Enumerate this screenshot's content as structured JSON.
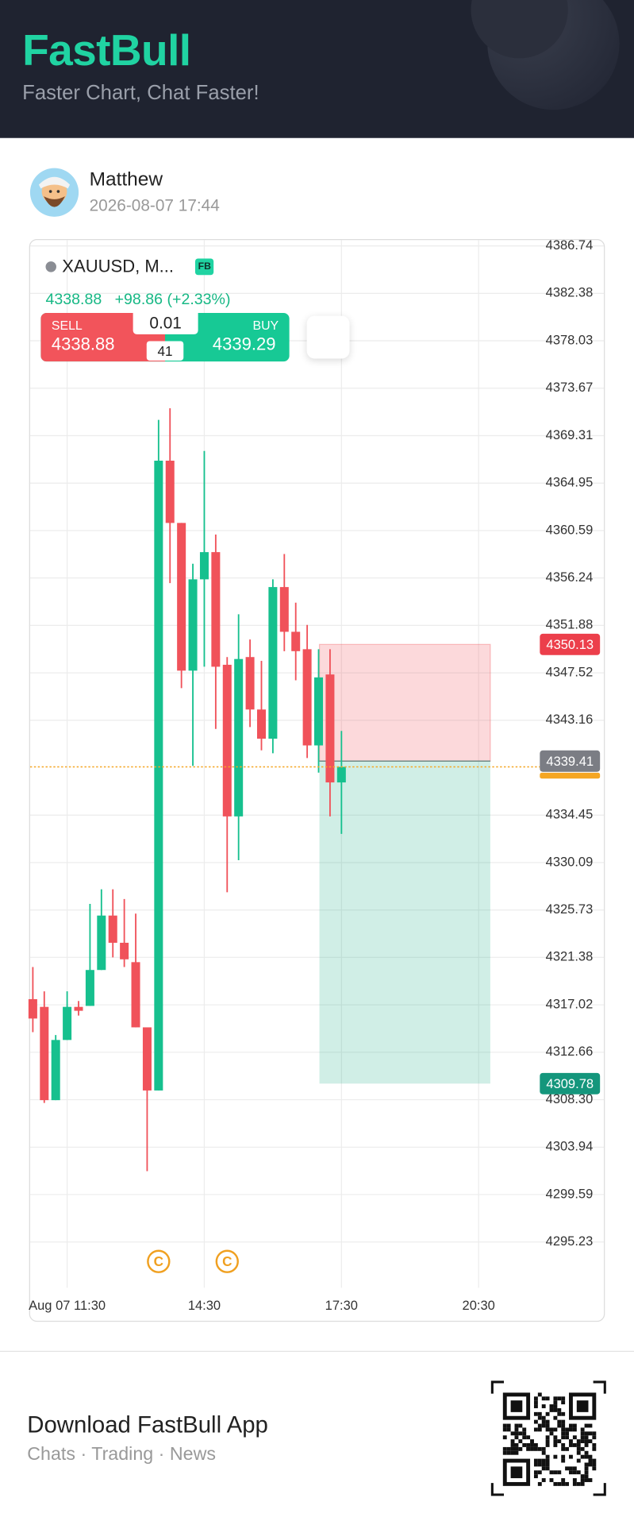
{
  "header": {
    "title": "FastBull",
    "subtitle": "Faster Chart, Chat Faster!"
  },
  "post": {
    "author": "Matthew",
    "timestamp": "2026-08-07 17:44"
  },
  "chart_data": {
    "type": "candlestick",
    "symbol": "XAUUSD, M...",
    "badge": "FB",
    "quote": {
      "last": 4338.88,
      "change": "+98.86",
      "change_pct": "(+2.33%)",
      "sell_label": "SELL",
      "sell": 4338.88,
      "lot": 0.01,
      "spread": 41,
      "buy_label": "BUY",
      "buy": 4339.29
    },
    "x": [
      10.75,
      11,
      11.25,
      11.5,
      11.75,
      12,
      12.25,
      12.5,
      12.75,
      13,
      13.25,
      13.5,
      13.75,
      14,
      14.25,
      14.5,
      14.75,
      15,
      15.25,
      15.5,
      15.75,
      16,
      16.25,
      16.5,
      16.75,
      17,
      17.25,
      17.5
    ],
    "open": [
      4317.54,
      4316.83,
      4308.26,
      4313.79,
      4316.83,
      4316.92,
      4320.22,
      4325.22,
      4322.72,
      4320.94,
      4314.95,
      4309.15,
      4367.01,
      4361.29,
      4347.72,
      4356.11,
      4358.61,
      4348.26,
      4334.33,
      4348.97,
      4344.15,
      4341.47,
      4355.4,
      4351.29,
      4349.69,
      4340.85,
      4347.37,
      4337.45
    ],
    "high": [
      4320.49,
      4318.26,
      4314.24,
      4318.26,
      4317.37,
      4326.29,
      4327.63,
      4327.63,
      4326.74,
      4325.4,
      4314.95,
      4370.76,
      4371.83,
      4361.29,
      4357.54,
      4367.9,
      4360.22,
      4348.97,
      4352.9,
      4350.58,
      4348.62,
      4356.11,
      4358.44,
      4353.97,
      4351.92,
      4349.69,
      4349.69,
      4342.18
    ],
    "low": [
      4314.51,
      4308.0,
      4308.26,
      4313.79,
      4316.03,
      4316.92,
      4320.22,
      4321.38,
      4320.49,
      4314.95,
      4301.74,
      4309.15,
      4355.76,
      4346.11,
      4338.97,
      4348.08,
      4342.36,
      4327.36,
      4330.31,
      4342.54,
      4340.4,
      4340.13,
      4349.51,
      4346.83,
      4339.69,
      4338.35,
      4334.33,
      4332.72
    ],
    "close": [
      4315.76,
      4308.26,
      4313.79,
      4316.83,
      4316.47,
      4320.22,
      4325.22,
      4322.72,
      4321.2,
      4314.95,
      4309.15,
      4367.01,
      4361.29,
      4347.72,
      4356.11,
      4358.61,
      4348.08,
      4334.33,
      4348.79,
      4344.15,
      4341.47,
      4355.4,
      4351.29,
      4349.51,
      4340.85,
      4347.1,
      4337.45,
      4338.88
    ],
    "up_color": "#16c08e",
    "down_color": "#f0525a",
    "last_price": 4338.88,
    "last_price_color": "#f5a623",
    "price_lines": [
      {
        "value": 4350.13,
        "color": "#ec3f4b"
      },
      {
        "value": 4339.41,
        "color": "#7b7d84"
      },
      {
        "value": 4309.78,
        "color": "#14967c"
      }
    ],
    "position": {
      "stop": 4350.13,
      "entry": 4339.41,
      "target": 4309.78
    },
    "markers": [
      {
        "x": 13.5,
        "label": "C"
      },
      {
        "x": 15.0,
        "label": "C"
      }
    ],
    "xlim": [
      10.69,
      23.24
    ],
    "xticks": [
      {
        "value": 11.5,
        "label": "Aug 07 11:30"
      },
      {
        "value": 14.5,
        "label": "14:30"
      },
      {
        "value": 17.5,
        "label": "17:30"
      },
      {
        "value": 20.5,
        "label": "20:30"
      }
    ],
    "ylim": [
      4291.03,
      4387.28
    ],
    "yticks": [
      4386.74,
      4382.38,
      4378.03,
      4373.67,
      4369.31,
      4364.95,
      4360.59,
      4356.24,
      4351.88,
      4347.52,
      4343.16,
      4334.45,
      4330.09,
      4325.73,
      4321.38,
      4317.02,
      4312.66,
      {
        "value": 4308.3,
        "label": "4308.30"
      },
      4303.94,
      4299.59,
      4295.23
    ],
    "grid": true
  },
  "footer": {
    "title": "Download FastBull App",
    "subtitle": "Chats · Trading · News"
  }
}
